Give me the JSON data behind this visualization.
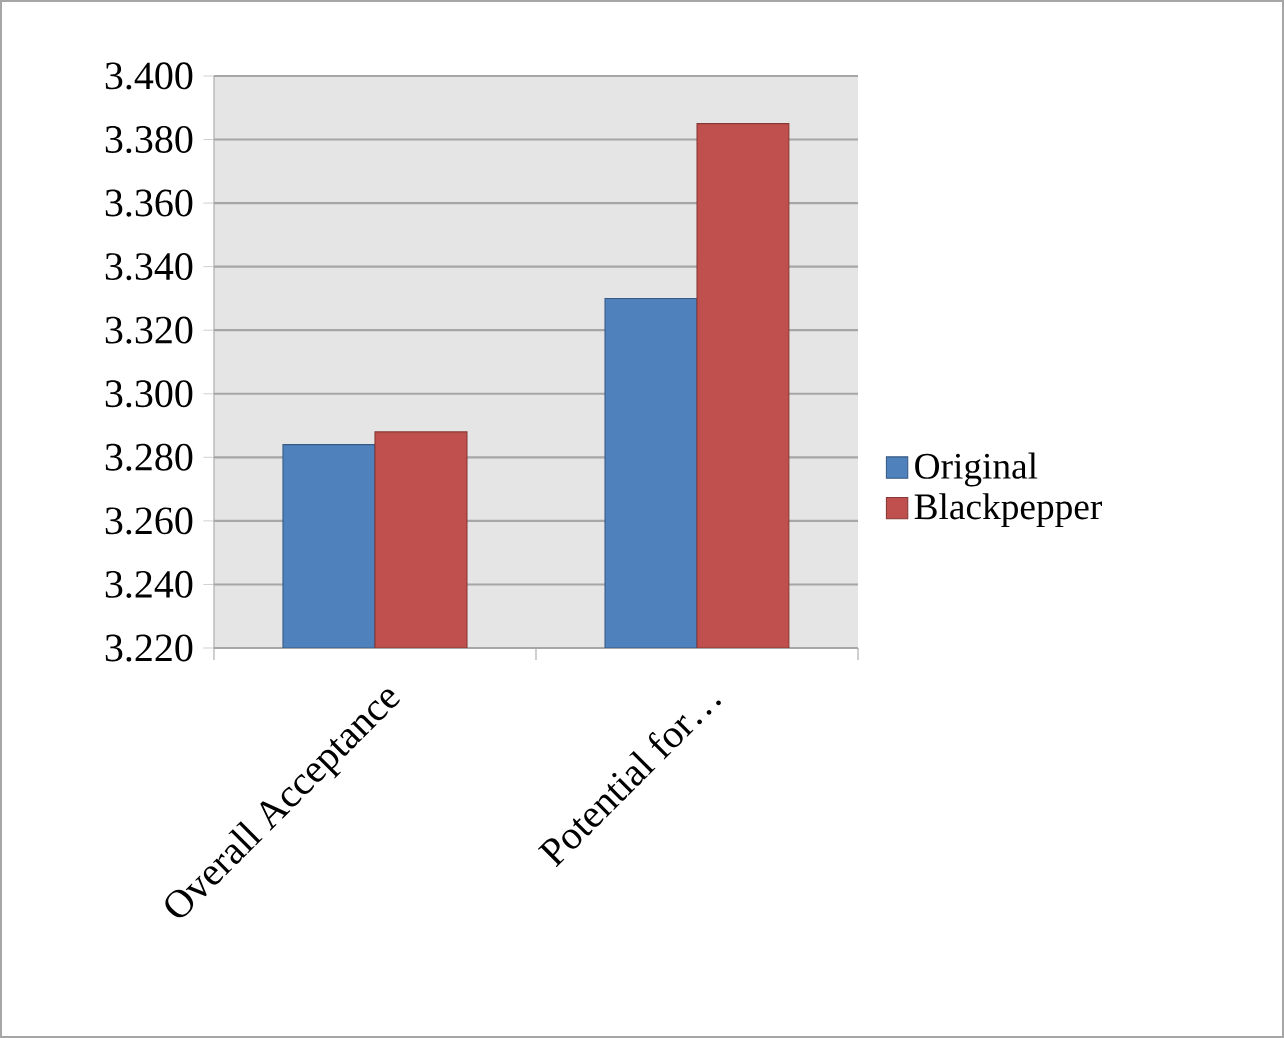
{
  "chart_data": {
    "type": "bar",
    "categories": [
      "Overall Acceptance",
      "Potential for…"
    ],
    "series": [
      {
        "name": "Original",
        "color": "#4f81bd",
        "values": [
          3.284,
          3.33
        ]
      },
      {
        "name": "Blackpepper",
        "color": "#c0504d",
        "values": [
          3.288,
          3.385
        ]
      }
    ],
    "ylim": [
      3.22,
      3.4
    ],
    "yticks": [
      {
        "value": 3.22,
        "label": "3.220"
      },
      {
        "value": 3.24,
        "label": "3.240"
      },
      {
        "value": 3.26,
        "label": "3.260"
      },
      {
        "value": 3.28,
        "label": "3.280"
      },
      {
        "value": 3.3,
        "label": "3.300"
      },
      {
        "value": 3.32,
        "label": "3.320"
      },
      {
        "value": 3.34,
        "label": "3.340"
      },
      {
        "value": 3.36,
        "label": "3.360"
      },
      {
        "value": 3.38,
        "label": "3.380"
      },
      {
        "value": 3.4,
        "label": "3.400"
      }
    ],
    "grid": "y",
    "legend": "right"
  }
}
